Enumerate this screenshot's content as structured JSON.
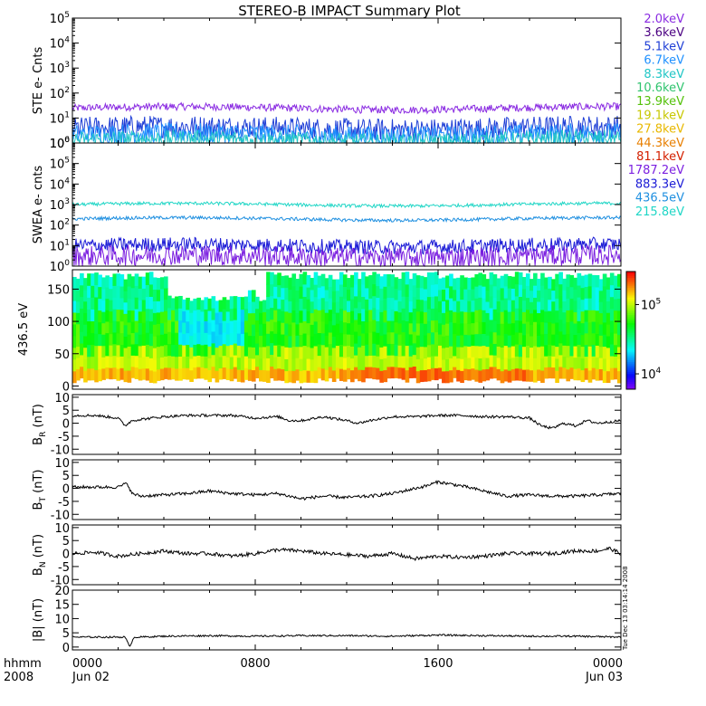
{
  "title": "STEREO-B IMPACT Summary Plot",
  "timestamp_note": "Tue Dec 13 03:14:14 2008",
  "x_axis": {
    "corner_labels": [
      "hhmm",
      "2008"
    ],
    "ticks": [
      {
        "hours": 0,
        "line1": "0000",
        "line2": "Jun 02"
      },
      {
        "hours": 8,
        "line1": "0800",
        "line2": ""
      },
      {
        "hours": 16,
        "line1": "1600",
        "line2": ""
      },
      {
        "hours": 24,
        "line1": "0000",
        "line2": "Jun 03"
      }
    ]
  },
  "legend": [
    {
      "label": "2.0keV",
      "color": "#8a2be2"
    },
    {
      "label": "3.6keV",
      "color": "#4b0082"
    },
    {
      "label": "5.1keV",
      "color": "#1f3fd6"
    },
    {
      "label": "6.7keV",
      "color": "#1e90ff"
    },
    {
      "label": "8.3keV",
      "color": "#20c6c6"
    },
    {
      "label": "10.6keV",
      "color": "#2fc46e"
    },
    {
      "label": "13.9keV",
      "color": "#54c10a"
    },
    {
      "label": "19.1keV",
      "color": "#c8c800"
    },
    {
      "label": "27.8keV",
      "color": "#e8b800"
    },
    {
      "label": "44.3keV",
      "color": "#e87f00"
    },
    {
      "label": "81.1keV",
      "color": "#d42000"
    },
    {
      "label": "1787.2eV",
      "color": "#7b1fe0"
    },
    {
      "label": "883.3eV",
      "color": "#1a1ad6"
    },
    {
      "label": "436.5eV",
      "color": "#1e8fe0"
    },
    {
      "label": "215.8eV",
      "color": "#1fd6c6"
    }
  ],
  "colorbar": {
    "labels": [
      {
        "label": "10",
        "exp": "5",
        "value": 100000
      },
      {
        "label": "10",
        "exp": "4",
        "value": 10000
      }
    ],
    "range": [
      6000,
      300000
    ]
  },
  "chart_data": [
    {
      "type": "line",
      "panel": "ste",
      "ylabel": "STE e- Cnts",
      "yscale": "log",
      "ylim": [
        1,
        100000
      ],
      "ytick_labels": [
        {
          "label": "10",
          "exp": "0",
          "value": 1
        },
        {
          "label": "10",
          "exp": "1",
          "value": 10
        },
        {
          "label": "10",
          "exp": "2",
          "value": 100
        },
        {
          "label": "10",
          "exp": "3",
          "value": 1000
        },
        {
          "label": "10",
          "exp": "4",
          "value": 10000
        },
        {
          "label": "10",
          "exp": "5",
          "value": 100000
        }
      ],
      "series": [
        {
          "name": "2.0keV",
          "color": "#8a2be2",
          "level": 25,
          "noise": 0.15
        },
        {
          "name": "3.6keV",
          "color": "#1f3fd6",
          "level": 4,
          "noise": 0.45
        },
        {
          "name": "5.1keV",
          "color": "#1e90ff",
          "level": 2.2,
          "noise": 0.4
        },
        {
          "name": "8.3keV",
          "color": "#20c6c6",
          "level": 1.3,
          "noise": 0.35
        }
      ]
    },
    {
      "type": "line",
      "panel": "swea",
      "ylabel": "SWEA e- cnts",
      "yscale": "log",
      "ylim": [
        1,
        1000000
      ],
      "ytick_labels": [
        {
          "label": "10",
          "exp": "0",
          "value": 1
        },
        {
          "label": "10",
          "exp": "1",
          "value": 10
        },
        {
          "label": "10",
          "exp": "2",
          "value": 100
        },
        {
          "label": "10",
          "exp": "3",
          "value": 1000
        },
        {
          "label": "10",
          "exp": "4",
          "value": 10000
        },
        {
          "label": "10",
          "exp": "5",
          "value": 100000
        },
        {
          "label": "10",
          "exp": "6",
          "value": 1000000
        }
      ],
      "series": [
        {
          "name": "215.8eV",
          "color": "#1fd6c6",
          "level": 1000,
          "noise": 0.08
        },
        {
          "name": "436.5eV",
          "color": "#1e8fe0",
          "level": 200,
          "noise": 0.08
        },
        {
          "name": "883.3eV",
          "color": "#1a1ad6",
          "level": 10,
          "noise": 0.35
        },
        {
          "name": "1787.2eV",
          "color": "#7b1fe0",
          "level": 3,
          "noise": 0.5
        }
      ]
    },
    {
      "type": "heatmap",
      "panel": "pad",
      "ylabel": "436.5 eV",
      "ylim": [
        -5,
        180
      ],
      "yticks": [
        0,
        50,
        100,
        150
      ]
    },
    {
      "type": "line",
      "panel": "br",
      "ylabel": "B",
      "ylabel_sub": "R",
      "ylabel_unit": " (nT)",
      "ylim": [
        -12,
        11
      ],
      "yticks": [
        -10,
        -5,
        0,
        5,
        10
      ],
      "series": [
        {
          "name": "BR",
          "x": [
            0,
            0.5,
            1,
            1.5,
            2,
            2.3,
            2.6,
            3,
            4,
            5,
            6,
            7,
            8,
            9,
            9.5,
            10,
            11,
            12,
            12.5,
            13,
            14,
            15,
            16,
            17,
            18,
            19,
            20,
            20.5,
            21,
            21.5,
            22,
            22.5,
            23,
            23.5,
            24
          ],
          "y": [
            3,
            3,
            3,
            2.5,
            2,
            -1,
            1,
            1.5,
            2.5,
            3,
            3,
            3,
            2,
            2.5,
            1,
            1,
            2.5,
            1,
            0,
            1,
            2.5,
            2.5,
            3,
            3,
            2.5,
            2.5,
            2,
            -1,
            -2,
            0,
            -1,
            1,
            0,
            0.5,
            1
          ],
          "noise": 0.5
        }
      ]
    },
    {
      "type": "line",
      "panel": "bt",
      "ylabel": "B",
      "ylabel_sub": "T",
      "ylabel_unit": " (nT)",
      "ylim": [
        -12,
        11
      ],
      "yticks": [
        -10,
        -5,
        0,
        5,
        10
      ],
      "series": [
        {
          "name": "BT",
          "x": [
            0,
            1,
            2,
            2.4,
            2.6,
            3,
            4,
            5,
            6,
            7,
            8,
            9,
            10,
            11,
            12,
            13,
            14,
            15,
            15.5,
            16,
            17,
            17.5,
            18,
            19,
            20,
            21,
            22,
            23,
            24
          ],
          "y": [
            0.5,
            0.5,
            0.5,
            2,
            -2,
            -3,
            -2.5,
            -2,
            -1,
            -2,
            -2.5,
            -2,
            -4,
            -3,
            -3.5,
            -3,
            -2,
            0,
            1,
            2.5,
            1,
            0,
            -1,
            -3,
            -2.5,
            -3,
            -3,
            -2.5,
            -2
          ],
          "noise": 0.6
        }
      ]
    },
    {
      "type": "line",
      "panel": "bn",
      "ylabel": "B",
      "ylabel_sub": "N",
      "ylabel_unit": " (nT)",
      "ylim": [
        -12,
        11
      ],
      "yticks": [
        -10,
        -5,
        0,
        5,
        10
      ],
      "series": [
        {
          "name": "BN",
          "x": [
            0,
            1,
            2,
            3,
            4,
            5,
            6,
            7,
            8,
            9,
            10,
            11,
            12,
            13,
            14,
            15,
            16,
            17,
            18,
            19,
            20,
            21,
            22,
            23,
            23.5,
            24
          ],
          "y": [
            0,
            0.5,
            -1,
            0,
            1,
            0,
            0,
            -1,
            0,
            1.5,
            1,
            0,
            -0.5,
            -1,
            0,
            -2,
            -1,
            -1.5,
            -1,
            0,
            0,
            0,
            1,
            1,
            2,
            0
          ],
          "noise": 0.7
        }
      ]
    },
    {
      "type": "line",
      "panel": "bmag",
      "ylabel": "|B| (nT)",
      "ylim": [
        -1,
        20
      ],
      "yticks": [
        0,
        5,
        10,
        15,
        20
      ],
      "series": [
        {
          "name": "|B|",
          "x": [
            0,
            1,
            2,
            2.3,
            2.5,
            2.7,
            3,
            4,
            6,
            8,
            10,
            12,
            14,
            16,
            18,
            20,
            22,
            24
          ],
          "y": [
            3.5,
            3.5,
            3.5,
            3.5,
            0.2,
            3.5,
            3.5,
            3.8,
            4,
            3.8,
            4,
            4,
            3.8,
            4.2,
            4,
            3.8,
            3.8,
            3.5
          ],
          "noise": 0.3
        }
      ]
    }
  ]
}
